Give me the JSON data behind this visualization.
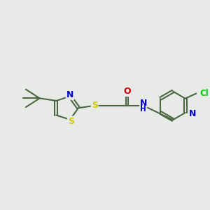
{
  "bg_color": "#e8eae8",
  "bond_color": "#4a6741",
  "bond_width": 1.5,
  "atom_colors": {
    "S": "#cccc00",
    "N": "#0000cc",
    "O": "#cc0000",
    "Cl": "#00cc00",
    "C": "#4a6741"
  },
  "font_size": 9
}
